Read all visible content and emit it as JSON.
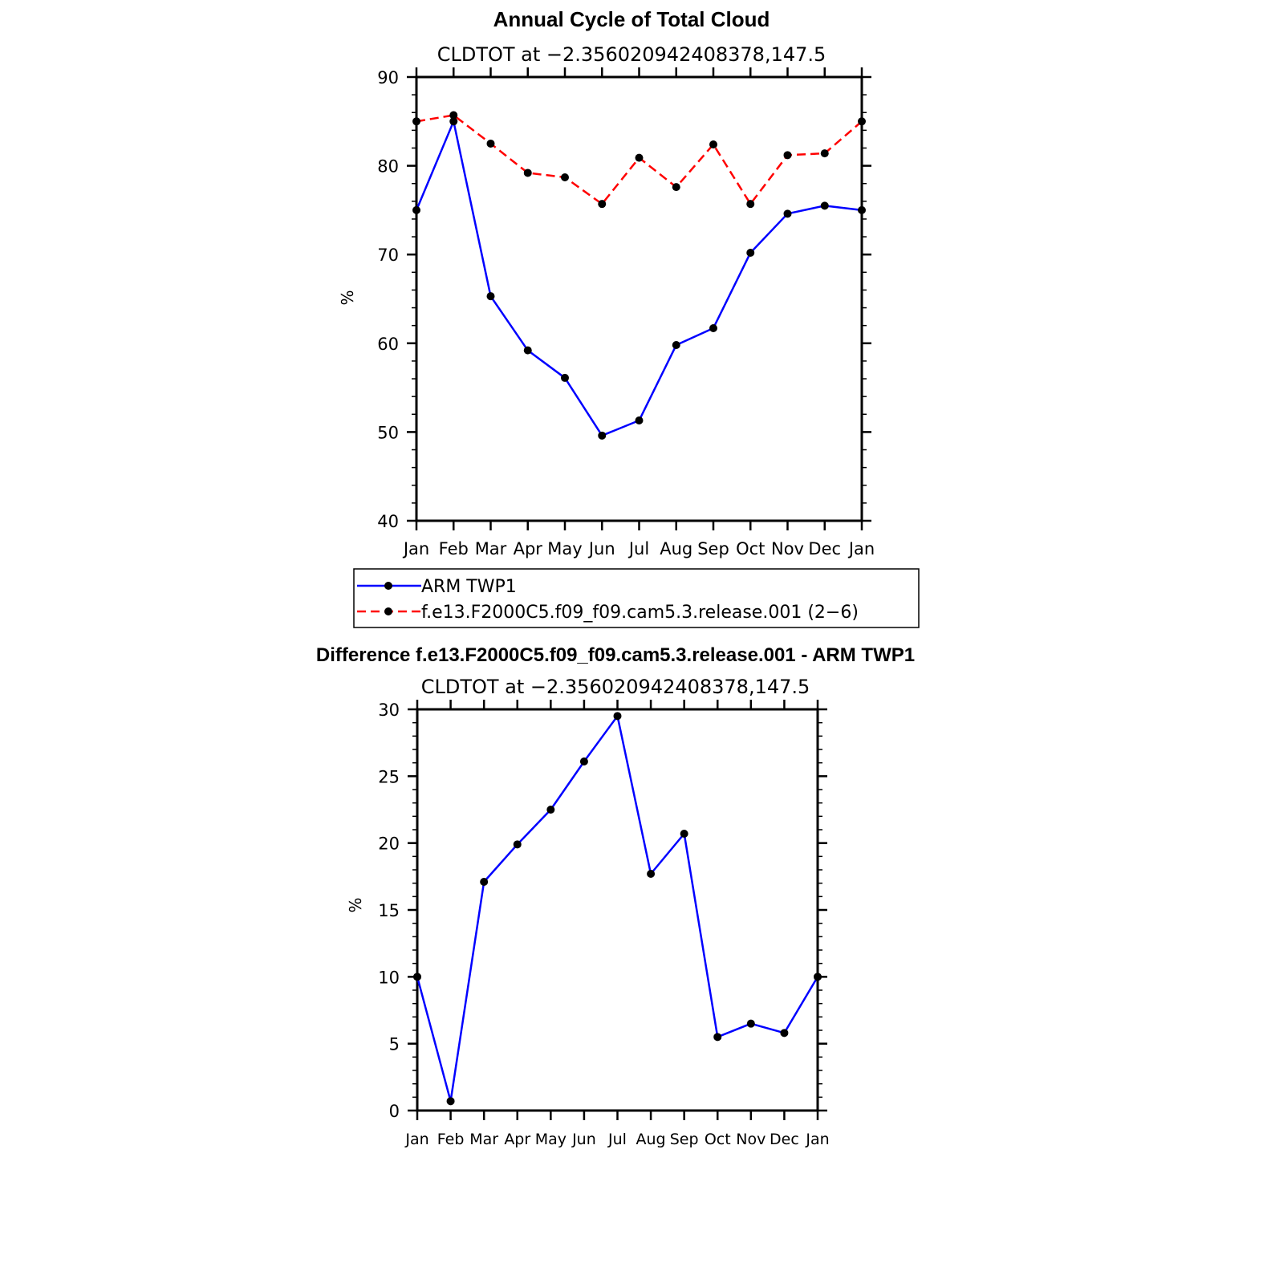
{
  "colors": {
    "obs": "#0000ff",
    "model": "#ff0000",
    "diff": "#0000ff",
    "axis": "#000000",
    "marker": "#000000"
  },
  "chart_data": [
    {
      "type": "line",
      "title": "Annual Cycle of Total Cloud",
      "subtitle": "CLDTOT at −2.356020942408378,147.5",
      "ylabel": "%",
      "ylim": [
        40,
        90
      ],
      "yticks": [
        40,
        50,
        60,
        70,
        80,
        90
      ],
      "categories": [
        "Jan",
        "Feb",
        "Mar",
        "Apr",
        "May",
        "Jun",
        "Jul",
        "Aug",
        "Sep",
        "Oct",
        "Nov",
        "Dec",
        "Jan"
      ],
      "series": [
        {
          "name": "ARM TWP1",
          "style": "solid",
          "values": [
            75.0,
            85.0,
            65.3,
            59.2,
            56.1,
            49.6,
            51.3,
            59.8,
            61.7,
            70.2,
            74.6,
            75.5,
            75.0
          ]
        },
        {
          "name": "f.e13.F2000C5.f09_f09.cam5.3.release.001 (2−6)",
          "style": "dashed",
          "values": [
            85.0,
            85.7,
            82.5,
            79.2,
            78.7,
            75.7,
            80.9,
            77.6,
            82.4,
            75.7,
            81.2,
            81.4,
            85.0
          ]
        }
      ],
      "legend": "below"
    },
    {
      "type": "line",
      "title": "Difference f.e13.F2000C5.f09_f09.cam5.3.release.001 - ARM TWP1",
      "subtitle": "CLDTOT at −2.356020942408378,147.5",
      "ylabel": "%",
      "ylim": [
        0,
        30
      ],
      "yticks": [
        0,
        5,
        10,
        15,
        20,
        25,
        30
      ],
      "categories": [
        "Jan",
        "Feb",
        "Mar",
        "Apr",
        "May",
        "Jun",
        "Jul",
        "Aug",
        "Sep",
        "Oct",
        "Nov",
        "Dec",
        "Jan"
      ],
      "series": [
        {
          "name": "Difference",
          "style": "solid",
          "values": [
            10.0,
            0.7,
            17.1,
            19.9,
            22.5,
            26.1,
            29.5,
            17.7,
            20.7,
            5.5,
            6.5,
            5.8,
            10.0
          ]
        }
      ]
    }
  ]
}
